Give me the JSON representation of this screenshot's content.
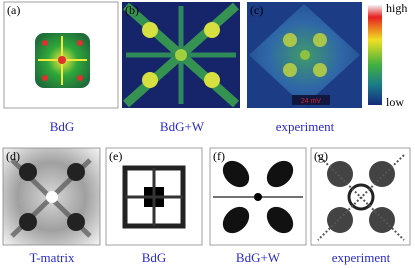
{
  "top_row": {
    "panels": [
      {
        "label": "(a)",
        "caption": "BdG"
      },
      {
        "label": "(b)",
        "caption": "BdG+W"
      },
      {
        "label": "(c)",
        "caption": "experiment",
        "scale_label": "24 mV"
      }
    ],
    "colorbar": {
      "high": "high",
      "low": "low"
    }
  },
  "bottom_row": {
    "panels": [
      {
        "label": "(d)",
        "caption": "T-matrix"
      },
      {
        "label": "(e)",
        "caption": "BdG"
      },
      {
        "label": "(f)",
        "caption": "BdG+W"
      },
      {
        "label": "(g)",
        "caption": "experiment"
      }
    ]
  }
}
